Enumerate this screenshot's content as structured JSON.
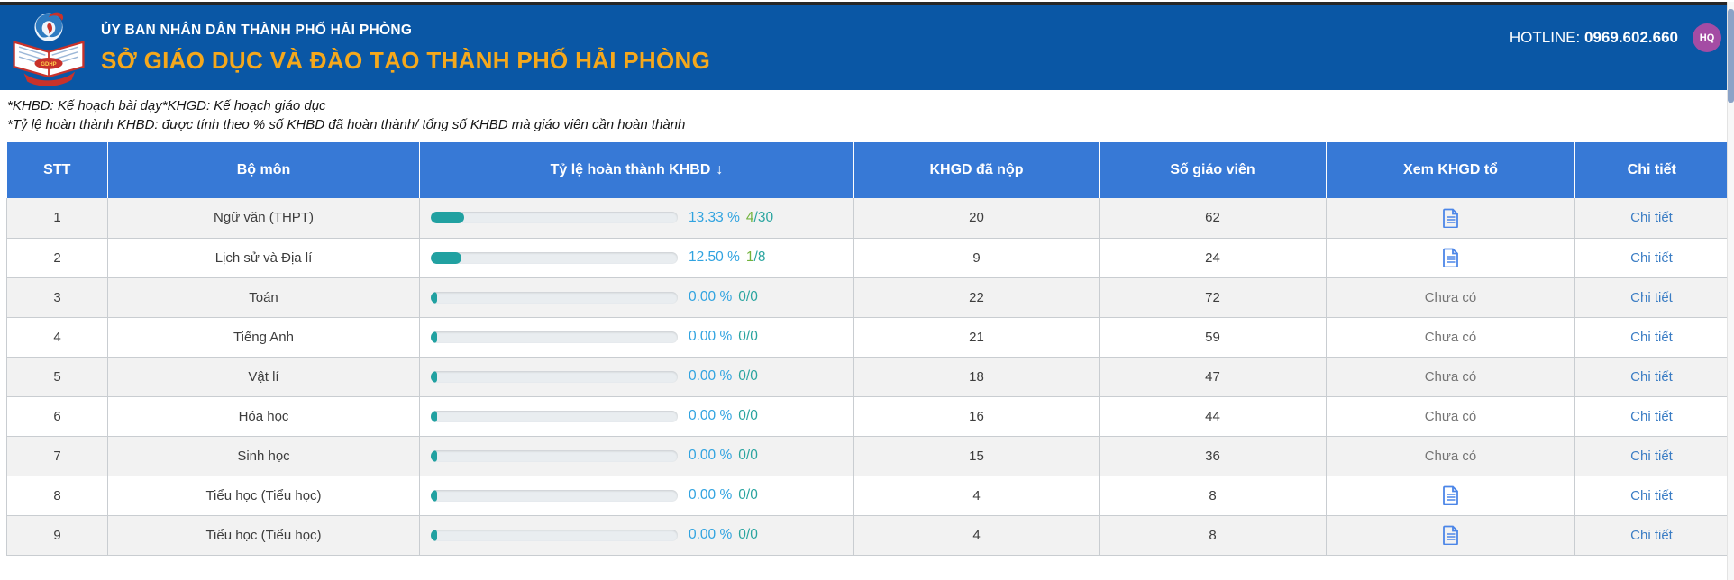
{
  "colors": {
    "header_blue": "#0a57a5",
    "table_header_blue": "#3779d6",
    "title_yellow": "#f5a81c",
    "avatar_purple": "#a44ca4",
    "progress_teal": "#21a1a1",
    "percent_blue": "#30a3e0",
    "done_green": "#71b33c",
    "frac_teal": "#2aa5a0",
    "link_blue": "#3b7dc4",
    "icon_blue": "#4c86e8",
    "muted_gray": "#757575"
  },
  "header": {
    "org_line1": "ỦY BAN NHÂN DÂN THÀNH PHỐ HẢI PHÒNG",
    "org_line2": "SỞ GIÁO DỤC VÀ ĐÀO TẠO THÀNH PHỐ HẢI PHÒNG",
    "hotline_label": "HOTLINE:",
    "hotline_number": "0969.602.660",
    "avatar_text": "HQ",
    "logo_text": "GDHP"
  },
  "notes": [
    "*KHBD: Kế hoạch bài dạy*KHGD: Kế hoạch giáo dục",
    "*Tỷ lệ hoàn thành KHBD: được tính theo % số KHBD đã hoàn thành/ tổng số KHBD mà giáo viên cần hoàn thành"
  ],
  "table": {
    "columns": [
      "STT",
      "Bộ môn",
      "Tỷ lệ hoàn thành KHBD",
      "KHGD đã nộp",
      "Số giáo viên",
      "Xem KHGD tổ",
      "Chi tiết"
    ],
    "sort_arrow": "↓",
    "sorted_column": "Tỷ lệ hoàn thành KHBD",
    "empty_view_label": "Chưa có",
    "detail_label": "Chi tiết",
    "rows": [
      {
        "stt": "1",
        "subject": "Ngữ văn (THPT)",
        "percent": 13.33,
        "percent_label": "13.33 %",
        "done": "4",
        "total": "30",
        "khgd_submitted": "20",
        "teachers": "62",
        "has_khgd": true
      },
      {
        "stt": "2",
        "subject": "Lịch sử và Địa lí",
        "percent": 12.5,
        "percent_label": "12.50 %",
        "done": "1",
        "total": "8",
        "khgd_submitted": "9",
        "teachers": "24",
        "has_khgd": true
      },
      {
        "stt": "3",
        "subject": "Toán",
        "percent": 0,
        "percent_label": "0.00 %",
        "done": "0",
        "total": "0",
        "khgd_submitted": "22",
        "teachers": "72",
        "has_khgd": false
      },
      {
        "stt": "4",
        "subject": "Tiếng Anh",
        "percent": 0,
        "percent_label": "0.00 %",
        "done": "0",
        "total": "0",
        "khgd_submitted": "21",
        "teachers": "59",
        "has_khgd": false
      },
      {
        "stt": "5",
        "subject": "Vật lí",
        "percent": 0,
        "percent_label": "0.00 %",
        "done": "0",
        "total": "0",
        "khgd_submitted": "18",
        "teachers": "47",
        "has_khgd": false
      },
      {
        "stt": "6",
        "subject": "Hóa học",
        "percent": 0,
        "percent_label": "0.00 %",
        "done": "0",
        "total": "0",
        "khgd_submitted": "16",
        "teachers": "44",
        "has_khgd": false
      },
      {
        "stt": "7",
        "subject": "Sinh học",
        "percent": 0,
        "percent_label": "0.00 %",
        "done": "0",
        "total": "0",
        "khgd_submitted": "15",
        "teachers": "36",
        "has_khgd": false
      },
      {
        "stt": "8",
        "subject": "Tiểu học (Tiểu học)",
        "percent": 0,
        "percent_label": "0.00 %",
        "done": "0",
        "total": "0",
        "khgd_submitted": "4",
        "teachers": "8",
        "has_khgd": true
      },
      {
        "stt": "9",
        "subject": "Tiểu học (Tiểu học)",
        "percent": 0,
        "percent_label": "0.00 %",
        "done": "0",
        "total": "0",
        "khgd_submitted": "4",
        "teachers": "8",
        "has_khgd": true
      }
    ]
  }
}
